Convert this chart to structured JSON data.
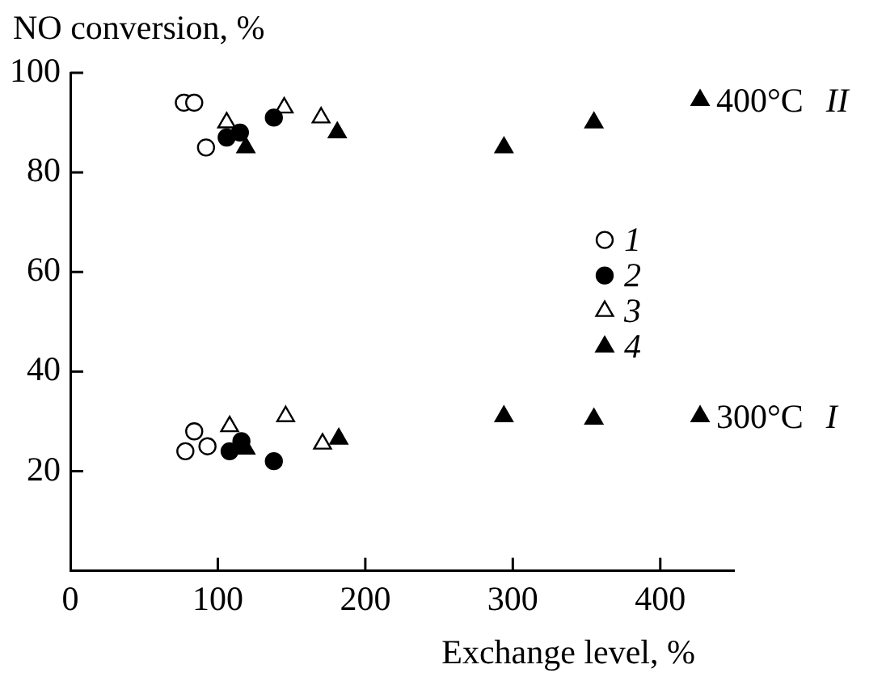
{
  "chart_data": {
    "type": "scatter",
    "xlabel": "Exchange level, %",
    "ylabel": "NO conversion, %",
    "xlim": [
      0,
      450
    ],
    "ylim": [
      0,
      100
    ],
    "xticks": [
      0,
      100,
      200,
      300,
      400
    ],
    "yticks": [
      20,
      40,
      60,
      80,
      100
    ],
    "legend": "right",
    "grid": false,
    "series": [
      {
        "name": "1",
        "marker": "circle",
        "color": "#ffffff",
        "x": [
          77,
          84,
          92,
          78,
          84,
          93
        ],
        "values": [
          94,
          94,
          85,
          24,
          28,
          25
        ]
      },
      {
        "name": "2",
        "marker": "circle",
        "color": "#000000",
        "x": [
          106,
          115,
          138,
          108,
          116,
          138
        ],
        "values": [
          87,
          88,
          91,
          24,
          26,
          22
        ]
      },
      {
        "name": "3",
        "marker": "triangle",
        "color": "#ffffff",
        "x": [
          106,
          145,
          170,
          108,
          146,
          171
        ],
        "values": [
          90,
          93,
          91,
          29,
          31,
          25.5
        ]
      },
      {
        "name": "4",
        "marker": "triangle",
        "color": "#000000",
        "x": [
          119,
          181,
          294,
          355,
          427,
          119,
          182,
          294,
          355,
          427
        ],
        "values": [
          85,
          88,
          85,
          90,
          94.5,
          24.5,
          26.5,
          31,
          30.5,
          31
        ]
      }
    ],
    "annotations": [
      {
        "text": "400°C II",
        "x": 427,
        "y": 94.5
      },
      {
        "text": "300°C I",
        "x": 427,
        "y": 31
      }
    ]
  }
}
